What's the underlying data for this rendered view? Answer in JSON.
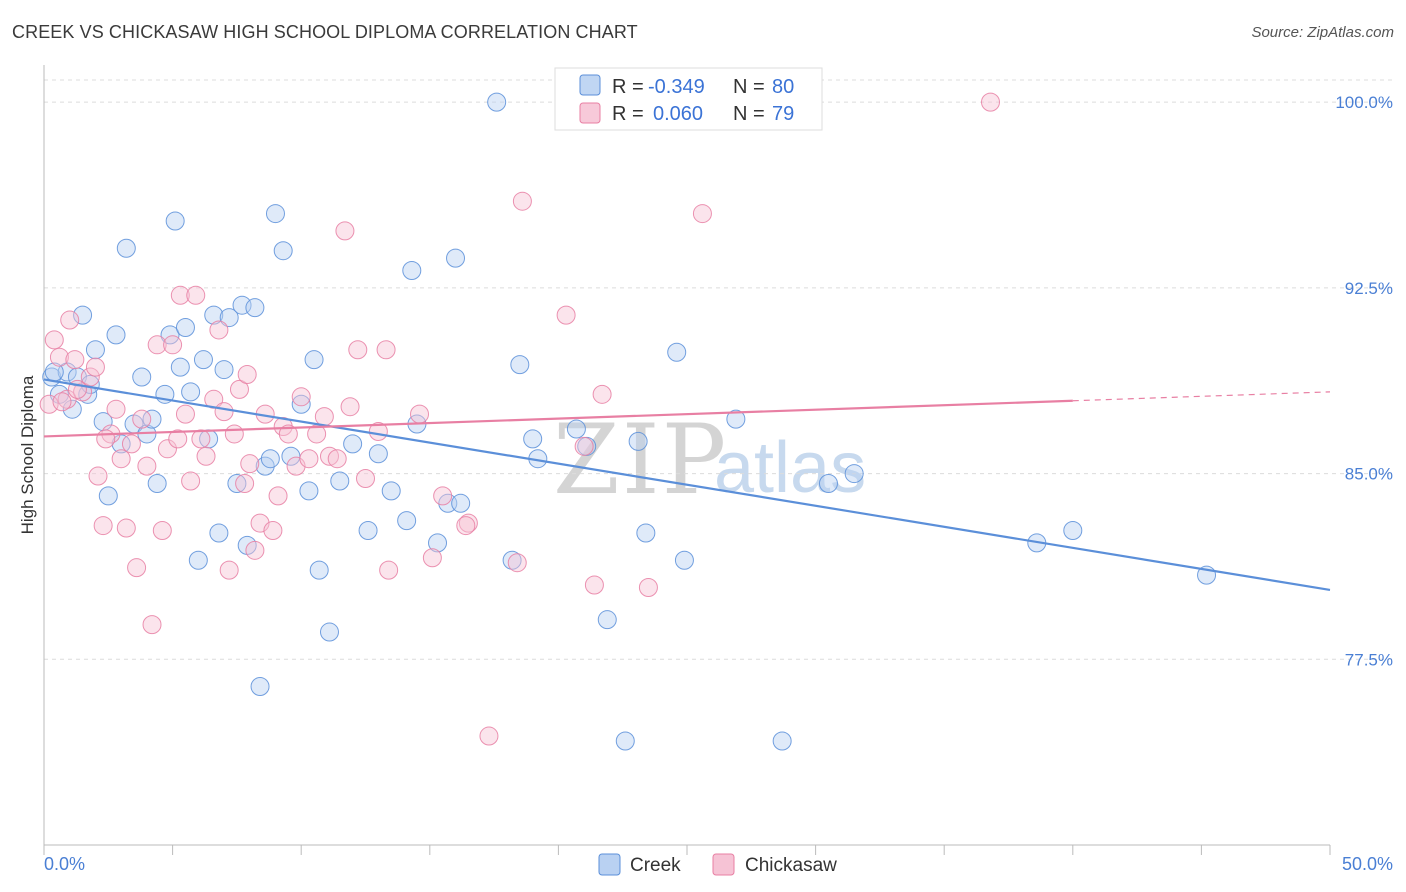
{
  "header": {
    "title": "CREEK VS CHICKASAW HIGH SCHOOL DIPLOMA CORRELATION CHART",
    "source": "Source: ZipAtlas.com"
  },
  "legend": {
    "rows": [
      {
        "r_label": "R =",
        "r_value": "-0.349",
        "n_label": "N =",
        "n_value": "80",
        "color": "#5b8fd9"
      },
      {
        "r_label": "R =",
        "r_value": "0.060",
        "n_label": "N =",
        "n_value": "79",
        "color": "#e87fa3"
      }
    ]
  },
  "watermark": {
    "zip": "ZIP",
    "atlas": "atlas"
  },
  "chart_data": {
    "type": "scatter",
    "title": "CREEK VS CHICKASAW HIGH SCHOOL DIPLOMA CORRELATION CHART",
    "xlabel": "",
    "ylabel": "High School Diploma",
    "xlim": [
      0,
      50
    ],
    "ylim": [
      70.0,
      101.5
    ],
    "x_tick_labels": [
      "0.0%",
      "50.0%"
    ],
    "y_ticks": [
      77.5,
      85.0,
      92.5,
      100.0
    ],
    "y_tick_labels": [
      "77.5%",
      "85.0%",
      "92.5%",
      "100.0%"
    ],
    "grid": true,
    "series": [
      {
        "name": "Creek",
        "color": "#5b8fd9",
        "fill": "#b9d1f2",
        "trend": {
          "x": [
            0,
            50
          ],
          "y": [
            88.8,
            80.3
          ],
          "dashed_from": null
        },
        "points": [
          [
            0.3,
            88.9
          ],
          [
            0.6,
            88.2
          ],
          [
            0.9,
            89.1
          ],
          [
            1.1,
            87.6
          ],
          [
            1.3,
            88.9
          ],
          [
            1.5,
            91.4
          ],
          [
            1.7,
            88.2
          ],
          [
            2.0,
            90.0
          ],
          [
            2.3,
            87.1
          ],
          [
            2.5,
            84.1
          ],
          [
            2.8,
            90.6
          ],
          [
            3.0,
            86.2
          ],
          [
            3.2,
            94.1
          ],
          [
            3.5,
            87.0
          ],
          [
            3.8,
            88.9
          ],
          [
            4.0,
            86.6
          ],
          [
            4.2,
            87.2
          ],
          [
            4.4,
            84.6
          ],
          [
            4.7,
            88.2
          ],
          [
            4.9,
            90.6
          ],
          [
            5.1,
            95.2
          ],
          [
            5.3,
            89.3
          ],
          [
            5.5,
            90.9
          ],
          [
            5.7,
            88.3
          ],
          [
            6.0,
            81.5
          ],
          [
            6.2,
            89.6
          ],
          [
            6.4,
            86.4
          ],
          [
            6.6,
            91.4
          ],
          [
            6.8,
            82.6
          ],
          [
            7.0,
            89.2
          ],
          [
            7.2,
            91.3
          ],
          [
            7.5,
            84.6
          ],
          [
            7.7,
            91.8
          ],
          [
            7.9,
            82.1
          ],
          [
            8.2,
            91.7
          ],
          [
            8.4,
            76.4
          ],
          [
            8.6,
            85.3
          ],
          [
            8.8,
            85.6
          ],
          [
            9.0,
            95.5
          ],
          [
            9.3,
            94.0
          ],
          [
            9.6,
            85.7
          ],
          [
            10.0,
            87.8
          ],
          [
            10.3,
            84.3
          ],
          [
            10.5,
            89.6
          ],
          [
            10.7,
            81.1
          ],
          [
            11.1,
            78.6
          ],
          [
            11.5,
            84.7
          ],
          [
            12.0,
            86.2
          ],
          [
            12.6,
            82.7
          ],
          [
            13.0,
            85.8
          ],
          [
            13.5,
            84.3
          ],
          [
            14.1,
            83.1
          ],
          [
            14.3,
            93.2
          ],
          [
            14.5,
            87.0
          ],
          [
            15.3,
            82.2
          ],
          [
            15.7,
            83.8
          ],
          [
            16.0,
            93.7
          ],
          [
            16.2,
            83.8
          ],
          [
            17.6,
            100.0
          ],
          [
            18.2,
            81.5
          ],
          [
            18.5,
            89.4
          ],
          [
            19.0,
            86.4
          ],
          [
            19.2,
            85.6
          ],
          [
            20.7,
            86.8
          ],
          [
            21.1,
            86.1
          ],
          [
            21.9,
            79.1
          ],
          [
            22.6,
            74.2
          ],
          [
            23.1,
            86.3
          ],
          [
            23.4,
            82.6
          ],
          [
            24.6,
            89.9
          ],
          [
            24.9,
            81.5
          ],
          [
            26.9,
            87.2
          ],
          [
            28.7,
            74.2
          ],
          [
            30.5,
            84.6
          ],
          [
            31.5,
            85.0
          ],
          [
            38.6,
            82.2
          ],
          [
            40.0,
            82.7
          ],
          [
            45.2,
            80.9
          ],
          [
            0.4,
            89.1
          ],
          [
            1.8,
            88.6
          ]
        ]
      },
      {
        "name": "Chickasaw",
        "color": "#e87fa3",
        "fill": "#f6c3d5",
        "trend": {
          "x": [
            0,
            50
          ],
          "y": [
            86.5,
            88.3
          ],
          "dashed_from": 40.0
        },
        "points": [
          [
            0.2,
            87.8
          ],
          [
            0.4,
            90.4
          ],
          [
            0.6,
            89.7
          ],
          [
            0.9,
            88.0
          ],
          [
            1.0,
            91.2
          ],
          [
            1.2,
            89.6
          ],
          [
            1.5,
            88.3
          ],
          [
            1.8,
            88.9
          ],
          [
            2.0,
            89.3
          ],
          [
            2.1,
            84.9
          ],
          [
            2.3,
            82.9
          ],
          [
            2.6,
            86.6
          ],
          [
            2.8,
            87.6
          ],
          [
            3.0,
            85.6
          ],
          [
            3.2,
            82.8
          ],
          [
            3.4,
            86.2
          ],
          [
            3.6,
            81.2
          ],
          [
            3.8,
            87.2
          ],
          [
            4.0,
            85.3
          ],
          [
            4.2,
            78.9
          ],
          [
            4.4,
            90.2
          ],
          [
            4.6,
            82.7
          ],
          [
            4.8,
            86.0
          ],
          [
            5.0,
            90.2
          ],
          [
            5.2,
            86.4
          ],
          [
            5.3,
            92.2
          ],
          [
            5.5,
            87.4
          ],
          [
            5.9,
            92.2
          ],
          [
            6.1,
            86.4
          ],
          [
            6.3,
            85.7
          ],
          [
            6.6,
            88.0
          ],
          [
            6.8,
            90.8
          ],
          [
            7.0,
            87.5
          ],
          [
            7.2,
            81.1
          ],
          [
            7.4,
            86.6
          ],
          [
            7.6,
            88.4
          ],
          [
            7.8,
            84.6
          ],
          [
            8.0,
            85.4
          ],
          [
            8.2,
            81.9
          ],
          [
            8.4,
            83.0
          ],
          [
            8.6,
            87.4
          ],
          [
            8.9,
            82.7
          ],
          [
            9.1,
            84.1
          ],
          [
            9.3,
            86.9
          ],
          [
            9.5,
            86.6
          ],
          [
            9.8,
            85.3
          ],
          [
            10.0,
            88.1
          ],
          [
            10.3,
            85.6
          ],
          [
            10.6,
            86.6
          ],
          [
            10.9,
            87.3
          ],
          [
            11.1,
            85.7
          ],
          [
            11.4,
            85.6
          ],
          [
            11.7,
            94.8
          ],
          [
            11.9,
            87.7
          ],
          [
            12.2,
            90.0
          ],
          [
            12.5,
            84.8
          ],
          [
            13.0,
            86.7
          ],
          [
            13.3,
            90.0
          ],
          [
            13.4,
            81.1
          ],
          [
            15.1,
            81.6
          ],
          [
            15.5,
            84.1
          ],
          [
            16.5,
            83.0
          ],
          [
            17.3,
            74.4
          ],
          [
            18.4,
            81.4
          ],
          [
            18.6,
            96.0
          ],
          [
            20.3,
            91.4
          ],
          [
            21.0,
            86.1
          ],
          [
            21.4,
            80.5
          ],
          [
            21.7,
            88.2
          ],
          [
            23.5,
            80.4
          ],
          [
            25.6,
            95.5
          ],
          [
            36.8,
            100.0
          ],
          [
            0.7,
            87.9
          ],
          [
            1.3,
            88.4
          ],
          [
            2.4,
            86.4
          ],
          [
            5.7,
            84.7
          ],
          [
            7.9,
            89.0
          ],
          [
            14.6,
            87.4
          ],
          [
            16.4,
            82.9
          ]
        ]
      }
    ]
  },
  "bottom_legend": [
    {
      "label": "Creek",
      "color": "#5b8fd9",
      "fill": "#b9d1f2"
    },
    {
      "label": "Chickasaw",
      "color": "#e87fa3",
      "fill": "#f6c3d5"
    }
  ]
}
